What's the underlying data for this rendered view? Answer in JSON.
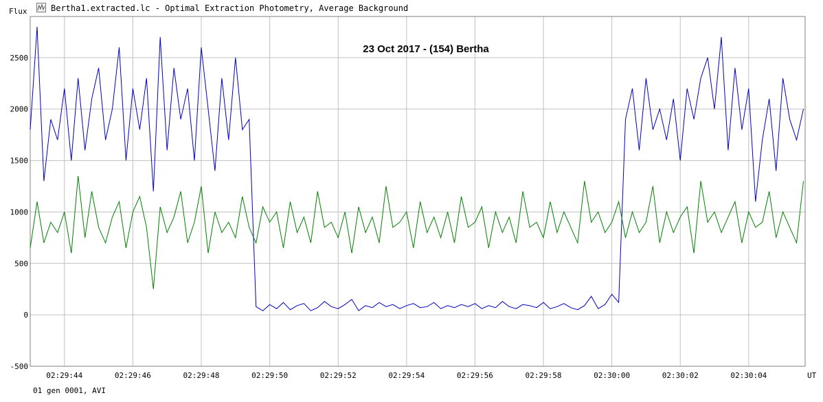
{
  "window": {
    "title": "Bertha1.extracted.lc - Optimal Extraction Photometry, Average Background",
    "icon": "lightcurve-app-icon"
  },
  "status": {
    "text": "01 gen 0001, AVI"
  },
  "chart_data": {
    "type": "line",
    "title": "23 Oct 2017 - (154) Bertha",
    "ylabel": "Flux",
    "xlabel": "UT",
    "ylim": [
      -500,
      2900
    ],
    "xlim": [
      0,
      22.65
    ],
    "y_ticks": [
      -500,
      0,
      500,
      1000,
      1500,
      2000,
      2500
    ],
    "x_ticks": [
      {
        "t": 1,
        "label": "02:29:44"
      },
      {
        "t": 3,
        "label": "02:29:46"
      },
      {
        "t": 5,
        "label": "02:29:48"
      },
      {
        "t": 7,
        "label": "02:29:50"
      },
      {
        "t": 9,
        "label": "02:29:52"
      },
      {
        "t": 11,
        "label": "02:29:54"
      },
      {
        "t": 13,
        "label": "02:29:56"
      },
      {
        "t": 15,
        "label": "02:29:58"
      },
      {
        "t": 17,
        "label": "02:30:00"
      },
      {
        "t": 19,
        "label": "02:30:02"
      },
      {
        "t": 21,
        "label": "02:30:04"
      }
    ],
    "grid": true,
    "series": [
      {
        "color": "#0000c0",
        "x": [
          0,
          0.2,
          0.4,
          0.6,
          0.8,
          1.0,
          1.2,
          1.4,
          1.6,
          1.8,
          2.0,
          2.2,
          2.4,
          2.6,
          2.8,
          3.0,
          3.2,
          3.4,
          3.6,
          3.8,
          4.0,
          4.2,
          4.4,
          4.6,
          4.8,
          5.0,
          5.2,
          5.4,
          5.6,
          5.8,
          6.0,
          6.2,
          6.4,
          6.6,
          6.8,
          7.0,
          7.2,
          7.4,
          7.6,
          7.8,
          8.0,
          8.2,
          8.4,
          8.6,
          8.8,
          9.0,
          9.2,
          9.4,
          9.6,
          9.8,
          10.0,
          10.2,
          10.4,
          10.6,
          10.8,
          11.0,
          11.2,
          11.4,
          11.6,
          11.8,
          12.0,
          12.2,
          12.4,
          12.6,
          12.8,
          13.0,
          13.2,
          13.4,
          13.6,
          13.8,
          14.0,
          14.2,
          14.4,
          14.6,
          14.8,
          15.0,
          15.2,
          15.4,
          15.6,
          15.8,
          16.0,
          16.2,
          16.4,
          16.6,
          16.8,
          17.0,
          17.2,
          17.4,
          17.6,
          17.8,
          18.0,
          18.2,
          18.4,
          18.6,
          18.8,
          19.0,
          19.2,
          19.4,
          19.6,
          19.8,
          20.0,
          20.2,
          20.4,
          20.6,
          20.8,
          21.0,
          21.2,
          21.4,
          21.6,
          21.8,
          22.0,
          22.2,
          22.4,
          22.6
        ],
        "y": [
          1800,
          2800,
          1300,
          1900,
          1700,
          2200,
          1500,
          2300,
          1600,
          2100,
          2400,
          1700,
          2000,
          2600,
          1500,
          2200,
          1800,
          2300,
          1200,
          2700,
          1600,
          2400,
          1900,
          2200,
          1500,
          2600,
          2000,
          1400,
          2300,
          1700,
          2500,
          1800,
          1900,
          80,
          40,
          100,
          60,
          120,
          50,
          90,
          110,
          40,
          70,
          130,
          80,
          60,
          100,
          150,
          40,
          90,
          70,
          120,
          80,
          100,
          60,
          90,
          110,
          70,
          80,
          120,
          60,
          90,
          70,
          100,
          80,
          110,
          60,
          90,
          70,
          130,
          80,
          60,
          100,
          90,
          70,
          120,
          60,
          80,
          110,
          70,
          50,
          90,
          180,
          60,
          100,
          200,
          120,
          1900,
          2200,
          1600,
          2300,
          1800,
          2000,
          1700,
          2100,
          1500,
          2200,
          1900,
          2300,
          2500,
          2000,
          2700,
          1600,
          2400,
          1800,
          2200,
          1100,
          1700,
          2100,
          1400,
          2300,
          1900,
          1700,
          2000
        ]
      },
      {
        "color": "#008000",
        "x": [
          0,
          0.2,
          0.4,
          0.6,
          0.8,
          1.0,
          1.2,
          1.4,
          1.6,
          1.8,
          2.0,
          2.2,
          2.4,
          2.6,
          2.8,
          3.0,
          3.2,
          3.4,
          3.6,
          3.8,
          4.0,
          4.2,
          4.4,
          4.6,
          4.8,
          5.0,
          5.2,
          5.4,
          5.6,
          5.8,
          6.0,
          6.2,
          6.4,
          6.6,
          6.8,
          7.0,
          7.2,
          7.4,
          7.6,
          7.8,
          8.0,
          8.2,
          8.4,
          8.6,
          8.8,
          9.0,
          9.2,
          9.4,
          9.6,
          9.8,
          10.0,
          10.2,
          10.4,
          10.6,
          10.8,
          11.0,
          11.2,
          11.4,
          11.6,
          11.8,
          12.0,
          12.2,
          12.4,
          12.6,
          12.8,
          13.0,
          13.2,
          13.4,
          13.6,
          13.8,
          14.0,
          14.2,
          14.4,
          14.6,
          14.8,
          15.0,
          15.2,
          15.4,
          15.6,
          15.8,
          16.0,
          16.2,
          16.4,
          16.6,
          16.8,
          17.0,
          17.2,
          17.4,
          17.6,
          17.8,
          18.0,
          18.2,
          18.4,
          18.6,
          18.8,
          19.0,
          19.2,
          19.4,
          19.6,
          19.8,
          20.0,
          20.2,
          20.4,
          20.6,
          20.8,
          21.0,
          21.2,
          21.4,
          21.6,
          21.8,
          22.0,
          22.2,
          22.4,
          22.6
        ],
        "y": [
          650,
          1100,
          700,
          900,
          800,
          1000,
          600,
          1350,
          750,
          1200,
          850,
          700,
          950,
          1100,
          650,
          1000,
          1150,
          850,
          250,
          1050,
          800,
          950,
          1200,
          700,
          900,
          1250,
          600,
          1000,
          800,
          900,
          750,
          1150,
          850,
          700,
          1050,
          900,
          1000,
          650,
          1100,
          800,
          950,
          700,
          1200,
          850,
          900,
          750,
          1000,
          600,
          1050,
          800,
          950,
          700,
          1250,
          850,
          900,
          1000,
          650,
          1100,
          800,
          950,
          750,
          1000,
          700,
          1150,
          850,
          900,
          1050,
          650,
          1000,
          800,
          950,
          700,
          1200,
          850,
          900,
          750,
          1100,
          800,
          1000,
          850,
          700,
          1300,
          900,
          1000,
          800,
          900,
          1100,
          750,
          1000,
          800,
          900,
          1250,
          700,
          1000,
          800,
          950,
          1050,
          600,
          1300,
          900,
          1000,
          800,
          950,
          1100,
          700,
          1000,
          850,
          900,
          1200,
          750,
          1000,
          850,
          700,
          1300
        ]
      }
    ]
  }
}
